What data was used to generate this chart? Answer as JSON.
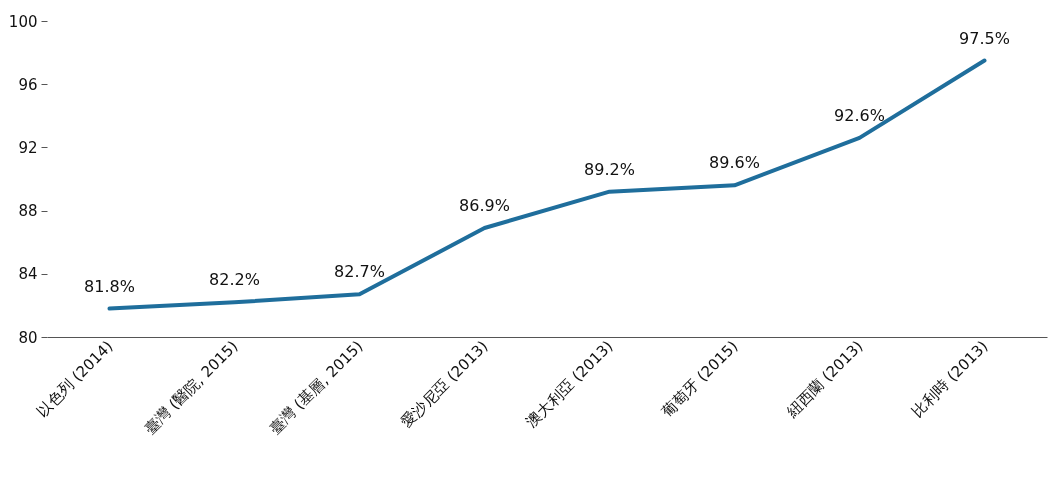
{
  "chart_data": {
    "type": "line",
    "categories": [
      "以色列 (2014)",
      "臺灣 (醫院, 2015)",
      "臺灣 (基層, 2015)",
      "愛沙尼亞 (2013)",
      "澳大利亞 (2013)",
      "葡萄牙 (2015)",
      "紐西蘭 (2013)",
      "比利時 (2013)"
    ],
    "series": [
      {
        "color": "#1f6e9c",
        "values": [
          81.8,
          82.2,
          82.7,
          86.9,
          89.2,
          89.6,
          92.6,
          97.5
        ],
        "value_labels": [
          "81.8%",
          "82.2%",
          "82.7%",
          "86.9%",
          "89.2%",
          "89.6%",
          "92.6%",
          "97.5%"
        ]
      }
    ],
    "ylim": [
      80,
      100
    ],
    "yticks": [
      80,
      84,
      88,
      92,
      96,
      100
    ],
    "grid": false,
    "marker": "none",
    "line_style": "solid"
  }
}
